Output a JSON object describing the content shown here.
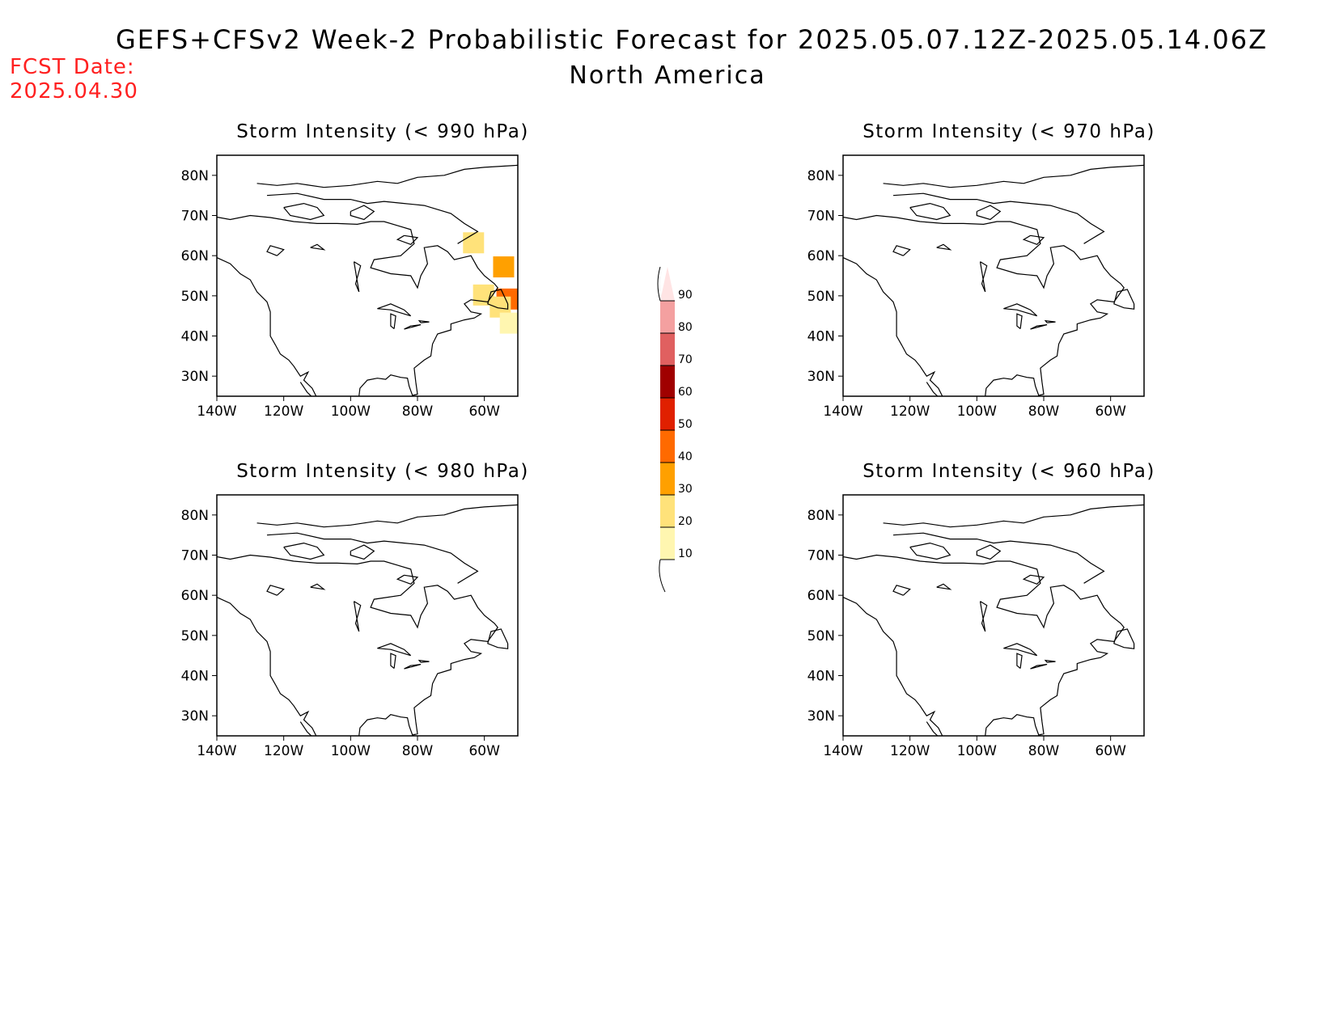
{
  "header": {
    "title": "GEFS+CFSv2 Week-2 Probabilistic Forecast for 2025.05.07.12Z-2025.05.14.06Z",
    "subtitle": "North America",
    "fcst_label": "FCST Date:",
    "fcst_date": "2025.04.30"
  },
  "axes": {
    "lat_labels": [
      "80N",
      "70N",
      "60N",
      "50N",
      "40N",
      "30N"
    ],
    "lon_labels": [
      "140W",
      "120W",
      "100W",
      "80W",
      "60W"
    ],
    "lon_range": [
      -140,
      -50
    ],
    "lat_range": [
      25,
      85
    ]
  },
  "panels": [
    {
      "title": "Storm Intensity (< 990 hPa)",
      "has_shading": true
    },
    {
      "title": "Storm Intensity (< 970 hPa)",
      "has_shading": false
    },
    {
      "title": "Storm Intensity (< 980 hPa)",
      "has_shading": false
    },
    {
      "title": "Storm Intensity (< 960 hPa)",
      "has_shading": false
    }
  ],
  "shading_990": [
    {
      "lon": -63,
      "lat": 63,
      "level": 20
    },
    {
      "lon": -60,
      "lat": 50,
      "level": 20
    },
    {
      "lon": -54,
      "lat": 57,
      "level": 30
    },
    {
      "lon": -53,
      "lat": 49,
      "level": 40
    },
    {
      "lon": -55,
      "lat": 47,
      "level": 20
    },
    {
      "lon": -52,
      "lat": 43,
      "level": 10
    }
  ],
  "colorbar": {
    "levels": [
      "10",
      "20",
      "30",
      "40",
      "50",
      "60",
      "70",
      "80",
      "90"
    ],
    "colors": [
      "#fff6b0",
      "#ffe27a",
      "#ffa000",
      "#ff6a00",
      "#e02000",
      "#a00000",
      "#e06060",
      "#f4a0a0",
      "#ffe4e4"
    ]
  }
}
